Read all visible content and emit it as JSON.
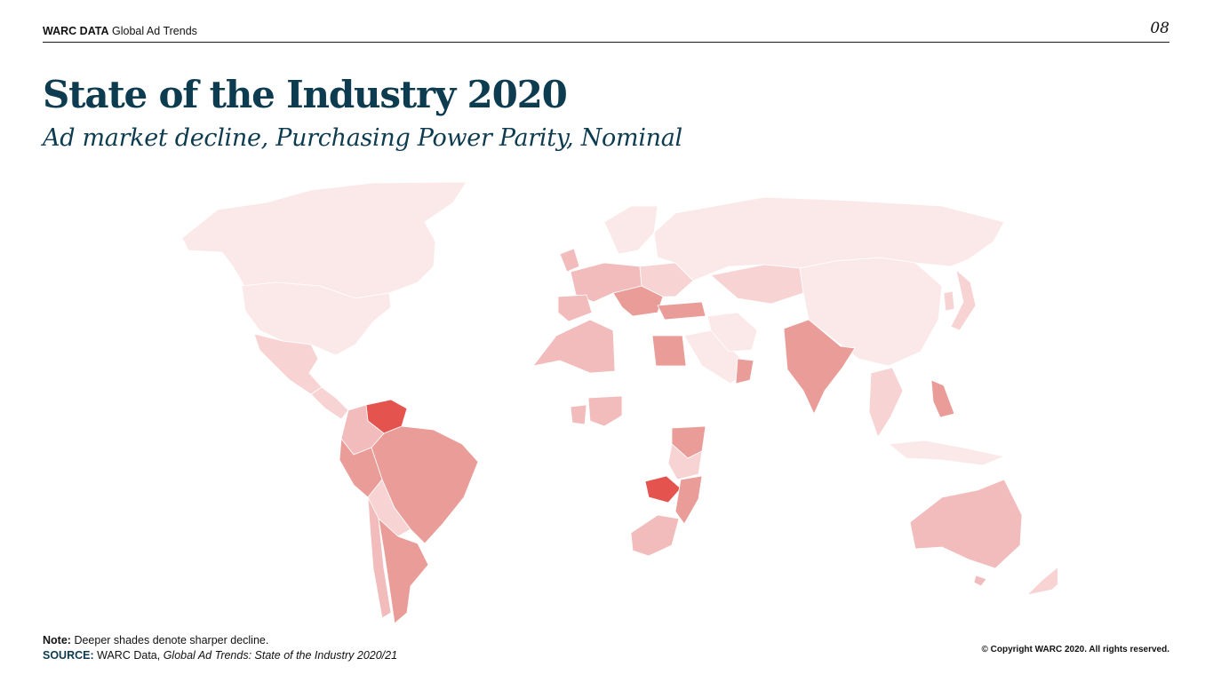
{
  "header": {
    "brand_bold": "WARC DATA",
    "brand_rest": "Global Ad Trends",
    "page_number": "08"
  },
  "title": "State of the Industry 2020",
  "subtitle": "Ad market decline, Purchasing Power Parity, Nominal",
  "map": {
    "legend_meaning": "Deeper shades denote sharper decline.",
    "colors": {
      "lightest": "#fbe9e9",
      "light": "#f7d3d3",
      "medium": "#f1bcbb",
      "dark": "#ea9d98",
      "darkest": "#e4534d"
    }
  },
  "footer": {
    "note_label": "Note:",
    "note_text": "Deeper shades denote sharper decline.",
    "source_label": "SOURCE:",
    "source_text": "WARC Data,",
    "source_italic": "Global Ad Trends: State of the Industry 2020/21",
    "copyright": "© Copyright WARC 2020. All rights reserved."
  }
}
